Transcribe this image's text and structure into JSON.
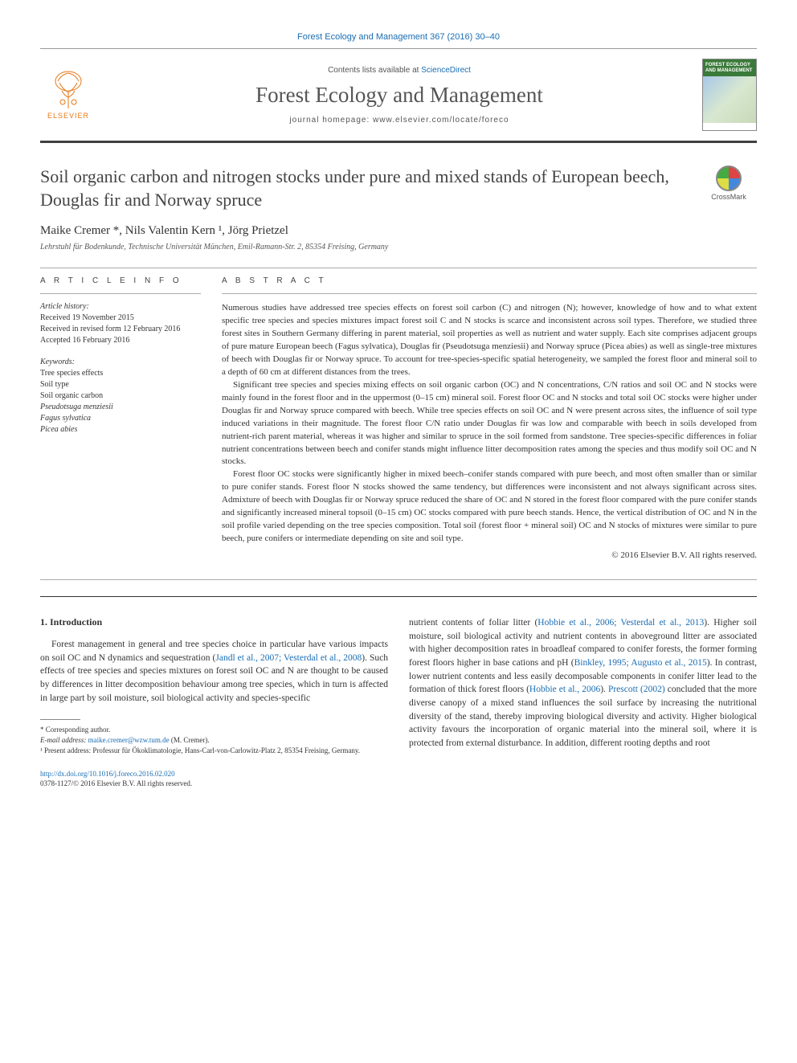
{
  "header": {
    "citation_line": "Forest Ecology and Management 367 (2016) 30–40",
    "contents_prefix": "Contents lists available at ",
    "contents_link": "ScienceDirect",
    "journal_title": "Forest Ecology and Management",
    "homepage_prefix": "journal homepage: ",
    "homepage_url": "www.elsevier.com/locate/foreco",
    "publisher": "ELSEVIER",
    "cover_title": "FOREST ECOLOGY AND MANAGEMENT"
  },
  "crossmark": {
    "label": "CrossMark"
  },
  "article": {
    "title": "Soil organic carbon and nitrogen stocks under pure and mixed stands of European beech, Douglas fir and Norway spruce",
    "authors_html": "Maike Cremer *, Nils Valentin Kern ¹, Jörg Prietzel",
    "affiliation": "Lehrstuhl für Bodenkunde, Technische Universität München, Emil-Ramann-Str. 2, 85354 Freising, Germany"
  },
  "info": {
    "section_label": "A R T I C L E   I N F O",
    "history_label": "Article history:",
    "history": [
      "Received 19 November 2015",
      "Received in revised form 12 February 2016",
      "Accepted 16 February 2016"
    ],
    "keywords_label": "Keywords:",
    "keywords": [
      {
        "text": "Tree species effects",
        "italic": false
      },
      {
        "text": "Soil type",
        "italic": false
      },
      {
        "text": "Soil organic carbon",
        "italic": false
      },
      {
        "text": "Pseudotsuga menziesii",
        "italic": true
      },
      {
        "text": "Fagus sylvatica",
        "italic": true
      },
      {
        "text": "Picea abies",
        "italic": true
      }
    ]
  },
  "abstract": {
    "section_label": "A B S T R A C T",
    "paragraphs": [
      "Numerous studies have addressed tree species effects on forest soil carbon (C) and nitrogen (N); however, knowledge of how and to what extent specific tree species and species mixtures impact forest soil C and N stocks is scarce and inconsistent across soil types. Therefore, we studied three forest sites in Southern Germany differing in parent material, soil properties as well as nutrient and water supply. Each site comprises adjacent groups of pure mature European beech (Fagus sylvatica), Douglas fir (Pseudotsuga menziesii) and Norway spruce (Picea abies) as well as single-tree mixtures of beech with Douglas fir or Norway spruce. To account for tree-species-specific spatial heterogeneity, we sampled the forest floor and mineral soil to a depth of 60 cm at different distances from the trees.",
      "Significant tree species and species mixing effects on soil organic carbon (OC) and N concentrations, C/N ratios and soil OC and N stocks were mainly found in the forest floor and in the uppermost (0–15 cm) mineral soil. Forest floor OC and N stocks and total soil OC stocks were higher under Douglas fir and Norway spruce compared with beech. While tree species effects on soil OC and N were present across sites, the influence of soil type induced variations in their magnitude. The forest floor C/N ratio under Douglas fir was low and comparable with beech in soils developed from nutrient-rich parent material, whereas it was higher and similar to spruce in the soil formed from sandstone. Tree species-specific differences in foliar nutrient concentrations between beech and conifer stands might influence litter decomposition rates among the species and thus modify soil OC and N stocks.",
      "Forest floor OC stocks were significantly higher in mixed beech–conifer stands compared with pure beech, and most often smaller than or similar to pure conifer stands. Forest floor N stocks showed the same tendency, but differences were inconsistent and not always significant across sites. Admixture of beech with Douglas fir or Norway spruce reduced the share of OC and N stored in the forest floor compared with the pure conifer stands and significantly increased mineral topsoil (0–15 cm) OC stocks compared with pure beech stands. Hence, the vertical distribution of OC and N in the soil profile varied depending on the tree species composition. Total soil (forest floor + mineral soil) OC and N stocks of mixtures were similar to pure beech, pure conifers or intermediate depending on site and soil type."
    ],
    "copyright": "© 2016 Elsevier B.V. All rights reserved."
  },
  "body": {
    "heading": "1. Introduction",
    "left_para": "Forest management in general and tree species choice in particular have various impacts on soil OC and N dynamics and sequestration (",
    "left_cite1": "Jandl et al., 2007; Vesterdal et al., 2008",
    "left_para2": "). Such effects of tree species and species mixtures on forest soil OC and N are thought to be caused by differences in litter decomposition behaviour among tree species, which in turn is affected in large part by soil moisture, soil biological activity and species-specific",
    "right_para1": "nutrient contents of foliar litter (",
    "right_cite1": "Hobbie et al., 2006; Vesterdal et al., 2013",
    "right_para2": "). Higher soil moisture, soil biological activity and nutrient contents in aboveground litter are associated with higher decomposition rates in broadleaf compared to conifer forests, the former forming forest floors higher in base cations and pH (",
    "right_cite2": "Binkley, 1995; Augusto et al., 2015",
    "right_para3": "). In contrast, lower nutrient contents and less easily decomposable components in conifer litter lead to the formation of thick forest floors (",
    "right_cite3": "Hobbie et al., 2006",
    "right_para4": "). ",
    "right_cite4": "Prescott (2002)",
    "right_para5": " concluded that the more diverse canopy of a mixed stand influences the soil surface by increasing the nutritional diversity of the stand, thereby improving biological diversity and activity. Higher biological activity favours the incorporation of organic material into the mineral soil, where it is protected from external disturbance. In addition, different rooting depths and root"
  },
  "footnotes": {
    "corr": "* Corresponding author.",
    "email_label": "E-mail address: ",
    "email": "maike.cremer@wzw.tum.de",
    "email_suffix": " (M. Cremer).",
    "present": "¹ Present address: Professur für Ökoklimatologie, Hans-Carl-von-Carlowitz-Platz 2, 85354 Freising, Germany."
  },
  "footer": {
    "doi": "http://dx.doi.org/10.1016/j.foreco.2016.02.020",
    "issn_line": "0378-1127/© 2016 Elsevier B.V. All rights reserved."
  },
  "colors": {
    "link": "#1a6db3",
    "publisher_orange": "#e67817",
    "cover_green": "#3a7a3a",
    "text": "#333333",
    "divider_dark": "#404040"
  }
}
